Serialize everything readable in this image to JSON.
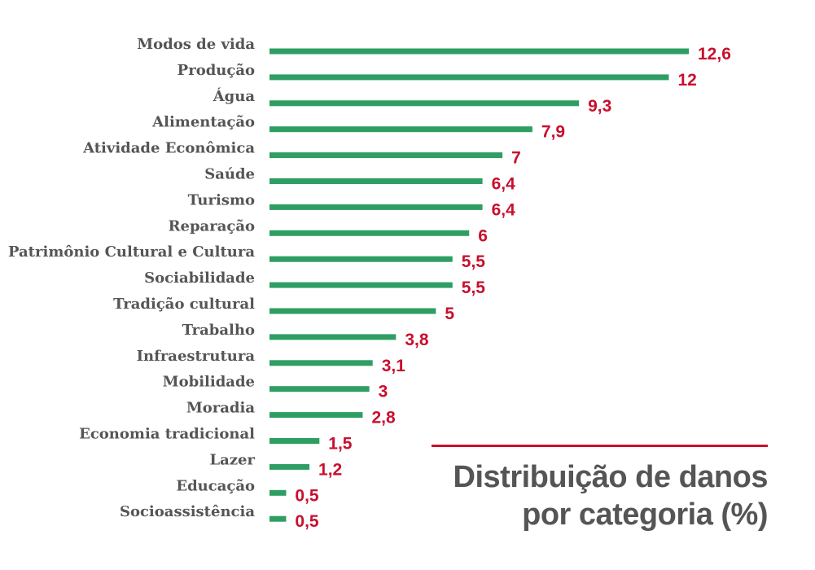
{
  "chart_data": {
    "type": "bar",
    "orientation": "horizontal",
    "title": "Distribuição de danos por categoria (%)",
    "title_lines": [
      "Distribuição de danos",
      "por categoria (%)"
    ],
    "categories": [
      "Modos de vida",
      "Produção",
      "Água",
      "Alimentação",
      "Atividade Econômica",
      "Saúde",
      "Turismo",
      "Reparação",
      "Patrimônio Cultural e Cultura",
      "Sociabilidade",
      "Tradição cultural",
      "Trabalho",
      "Infraestrutura",
      "Mobilidade",
      "Moradia",
      "Economia tradicional",
      "Lazer",
      "Educação",
      "Socioassistência"
    ],
    "values": [
      12.6,
      12,
      9.3,
      7.9,
      7,
      6.4,
      6.4,
      6,
      5.5,
      5.5,
      5,
      3.8,
      3.1,
      3,
      2.8,
      1.5,
      1.2,
      0.5,
      0.5
    ],
    "value_labels": [
      "12,6",
      "12",
      "9,3",
      "7,9",
      "7",
      "6,4",
      "6,4",
      "6",
      "5,5",
      "5,5",
      "5",
      "3,8",
      "3,1",
      "3",
      "2,8",
      "1,5",
      "1,2",
      "0,5",
      "0,5"
    ],
    "xlim": [
      0,
      12.6
    ],
    "grid": false,
    "legend": "none",
    "colors": {
      "bar": "#2e9e63",
      "value_label": "#c8102e",
      "category_label": "#555555",
      "title": "#555555",
      "title_rule": "#c8102e"
    }
  }
}
